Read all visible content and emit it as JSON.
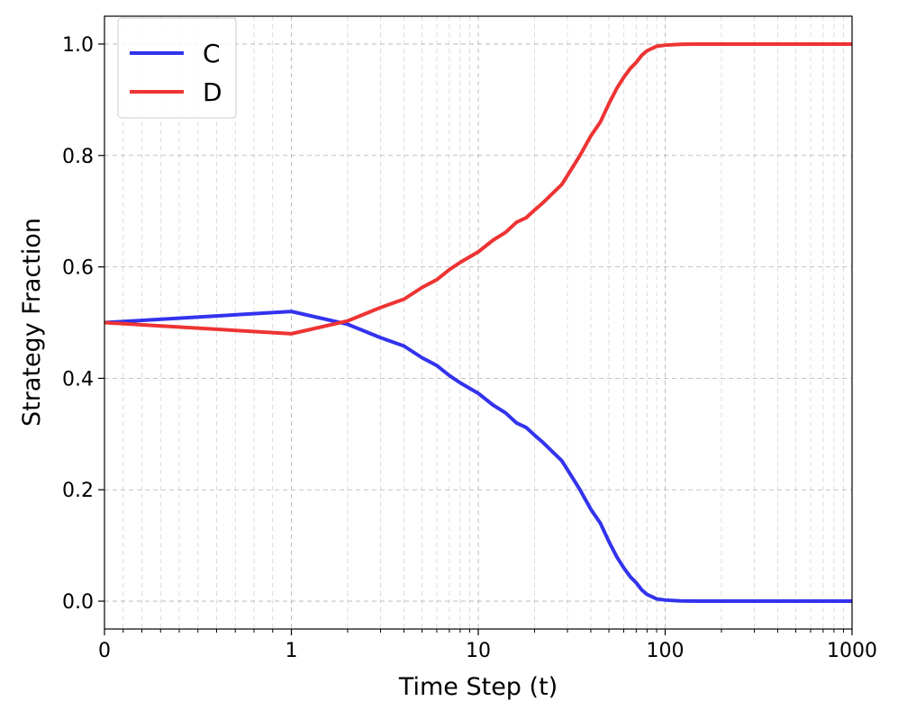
{
  "chart_data": {
    "type": "line",
    "xlabel": "Time Step (t)",
    "ylabel": "Strategy Fraction",
    "xscale": "symlog",
    "xlim": [
      0,
      1000
    ],
    "ylim": [
      -0.05,
      1.05
    ],
    "grid": true,
    "legend_position": "top-left",
    "x_ticks": [
      0,
      1,
      10,
      100,
      1000
    ],
    "x_tick_labels": [
      "0",
      "1",
      "10",
      "100",
      "1000"
    ],
    "y_ticks": [
      0.0,
      0.2,
      0.4,
      0.6,
      0.8,
      1.0
    ],
    "y_tick_labels": [
      "0.0",
      "0.2",
      "0.4",
      "0.6",
      "0.8",
      "1.0"
    ],
    "series": [
      {
        "name": "C",
        "color": "#3333ee",
        "x": [
          0,
          1,
          2,
          3,
          4,
          5,
          6,
          7,
          8,
          10,
          12,
          14,
          16,
          18,
          20,
          22,
          25,
          28,
          30,
          35,
          40,
          45,
          50,
          55,
          60,
          65,
          70,
          75,
          80,
          90,
          100,
          120,
          150,
          200,
          300,
          500,
          1000
        ],
        "y": [
          0.5,
          0.52,
          0.497,
          0.473,
          0.458,
          0.437,
          0.423,
          0.405,
          0.392,
          0.373,
          0.352,
          0.338,
          0.32,
          0.312,
          0.298,
          0.286,
          0.268,
          0.252,
          0.236,
          0.2,
          0.165,
          0.14,
          0.107,
          0.08,
          0.06,
          0.044,
          0.033,
          0.02,
          0.012,
          0.004,
          0.002,
          0.0005,
          0.0,
          0.0,
          0.0,
          0.0,
          0.0
        ]
      },
      {
        "name": "D",
        "color": "#ee3333",
        "x": [
          0,
          1,
          2,
          3,
          4,
          5,
          6,
          7,
          8,
          10,
          12,
          14,
          16,
          18,
          20,
          22,
          25,
          28,
          30,
          35,
          40,
          45,
          50,
          55,
          60,
          65,
          70,
          75,
          80,
          90,
          100,
          120,
          150,
          200,
          300,
          500,
          1000
        ],
        "y": [
          0.5,
          0.48,
          0.503,
          0.527,
          0.542,
          0.563,
          0.577,
          0.595,
          0.608,
          0.627,
          0.648,
          0.662,
          0.68,
          0.688,
          0.702,
          0.714,
          0.732,
          0.748,
          0.764,
          0.8,
          0.835,
          0.86,
          0.893,
          0.92,
          0.94,
          0.956,
          0.967,
          0.98,
          0.988,
          0.996,
          0.998,
          0.9995,
          1.0,
          1.0,
          1.0,
          1.0,
          1.0
        ]
      }
    ]
  }
}
